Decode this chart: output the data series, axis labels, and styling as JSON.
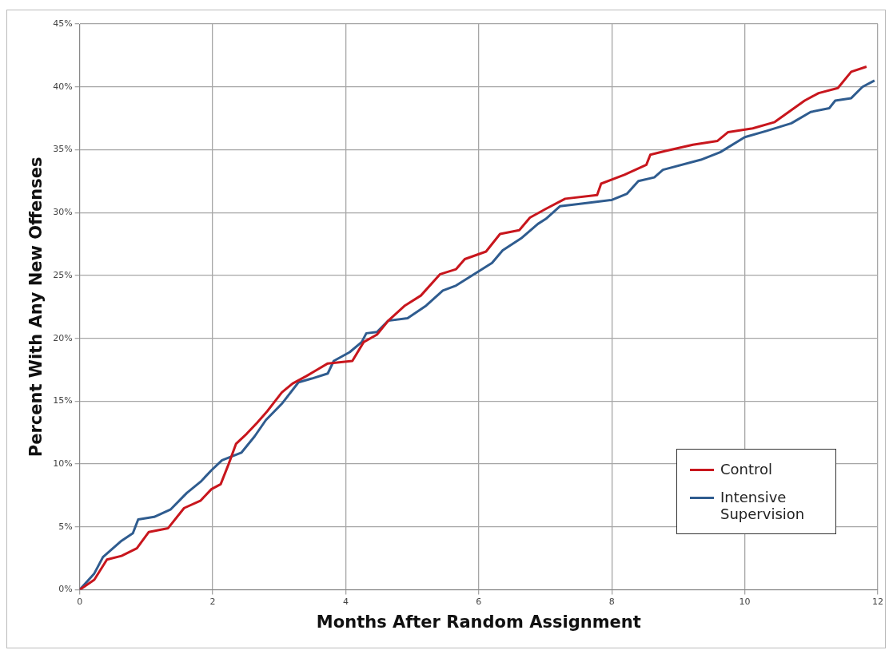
{
  "chart_data": {
    "type": "line",
    "xlabel": "Months After Random Assignment",
    "ylabel": "Percent With Any New Offenses",
    "xlim": [
      0,
      12
    ],
    "xticks": [
      0,
      2,
      4,
      6,
      8,
      10,
      12
    ],
    "ylim": [
      0,
      45
    ],
    "yticks": [
      {
        "value": 0,
        "label": "0%"
      },
      {
        "value": 5,
        "label": "5%"
      },
      {
        "value": 10,
        "label": "10%"
      },
      {
        "value": 15,
        "label": "15%"
      },
      {
        "value": 20,
        "label": "20%"
      },
      {
        "value": 25,
        "label": "25%"
      },
      {
        "value": 30,
        "label": "30%"
      },
      {
        "value": 35,
        "label": "35%"
      },
      {
        "value": 40,
        "label": "40%"
      },
      {
        "value": 45,
        "label": "45%"
      }
    ],
    "grid": true,
    "legend": "bottom right",
    "marker": "none",
    "line_style": "solid",
    "series": [
      {
        "name": "Control",
        "color": "#c8161d",
        "x": [
          0,
          0.22,
          0.41,
          0.63,
          0.86,
          1.04,
          1.33,
          1.57,
          1.82,
          1.98,
          2.12,
          2.24,
          2.35,
          2.51,
          2.67,
          2.82,
          3.04,
          3.2,
          3.41,
          3.57,
          3.73,
          4.1,
          4.27,
          4.47,
          4.64,
          4.89,
          5.13,
          5.42,
          5.66,
          5.79,
          6.11,
          6.32,
          6.61,
          6.77,
          7.01,
          7.3,
          7.78,
          7.84,
          8.19,
          8.52,
          8.58,
          8.81,
          9.22,
          9.59,
          9.75,
          10.12,
          10.45,
          10.66,
          10.9,
          11.11,
          11.4,
          11.6,
          11.83
        ],
        "values": [
          0,
          0.8,
          2.4,
          2.7,
          3.3,
          4.6,
          4.9,
          6.5,
          7.1,
          8.0,
          8.4,
          10.0,
          11.6,
          12.4,
          13.3,
          14.2,
          15.7,
          16.4,
          17.0,
          17.5,
          18.0,
          18.2,
          19.7,
          20.3,
          21.4,
          22.6,
          23.4,
          25.1,
          25.5,
          26.3,
          26.9,
          28.3,
          28.6,
          29.6,
          30.3,
          31.1,
          31.4,
          32.3,
          33.0,
          33.8,
          34.6,
          34.9,
          35.4,
          35.7,
          36.4,
          36.7,
          37.2,
          38.0,
          38.9,
          39.5,
          39.9,
          41.2,
          41.6
        ]
      },
      {
        "name": "Intensive Supervision",
        "color": "#2f5c8f",
        "x": [
          0,
          0.22,
          0.35,
          0.63,
          0.8,
          0.88,
          1.12,
          1.37,
          1.61,
          1.82,
          1.98,
          2.14,
          2.43,
          2.63,
          2.8,
          3.04,
          3.29,
          3.49,
          3.73,
          3.82,
          4.06,
          4.24,
          4.31,
          4.47,
          4.64,
          4.93,
          5.21,
          5.46,
          5.66,
          5.99,
          6.2,
          6.36,
          6.65,
          6.89,
          7.01,
          7.22,
          8.0,
          8.23,
          8.4,
          8.64,
          8.77,
          9.34,
          9.63,
          10.0,
          10.33,
          10.7,
          10.99,
          11.27,
          11.36,
          11.6,
          11.77,
          11.95
        ],
        "values": [
          0,
          1.3,
          2.6,
          3.9,
          4.5,
          5.6,
          5.8,
          6.4,
          7.7,
          8.6,
          9.5,
          10.3,
          10.9,
          12.2,
          13.5,
          14.8,
          16.5,
          16.8,
          17.2,
          18.2,
          18.9,
          19.7,
          20.4,
          20.5,
          21.4,
          21.6,
          22.6,
          23.8,
          24.2,
          25.3,
          26.0,
          27.0,
          28.0,
          29.1,
          29.5,
          30.5,
          31.0,
          31.5,
          32.5,
          32.8,
          33.4,
          34.2,
          34.8,
          36.0,
          36.5,
          37.1,
          38.0,
          38.3,
          38.9,
          39.1,
          40.0,
          40.5
        ]
      }
    ]
  }
}
